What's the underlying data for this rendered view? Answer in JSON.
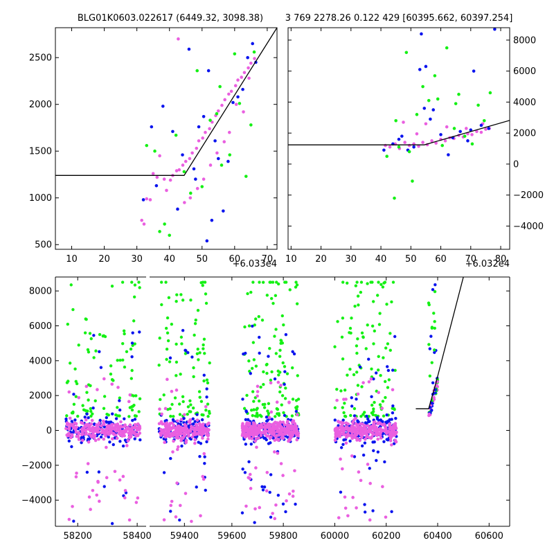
{
  "colors": {
    "blue": "#0a14ee",
    "green": "#15f015",
    "magenta": "#ea5fe0",
    "fit_line": "#000000",
    "background": "#ffffff"
  },
  "chart_data": [
    {
      "type": "scatter",
      "panel": "top-left",
      "title": "BLG01K0603.022617 (6449.32, 3098.38)",
      "xlabel": "",
      "ylabel": "",
      "x_offset_label": "+6.033e4",
      "xlim": [
        5,
        73
      ],
      "ylim": [
        450,
        2820
      ],
      "xticks": [
        10,
        20,
        30,
        40,
        50,
        60,
        70
      ],
      "yticks": [
        500,
        1000,
        1500,
        2000,
        2500
      ],
      "y_axis_side": "left",
      "series": [
        {
          "color_key": "magenta",
          "x": [
            31.5,
            32.2,
            33.0,
            34.1,
            35.0,
            36.2,
            37.0,
            38.4,
            39.1,
            40.3,
            41.0,
            42.2,
            43.0,
            44.1,
            45.0,
            46.2,
            47.0,
            48.3,
            49.0,
            50.2,
            51.0,
            52.3,
            53.1,
            54.2,
            55.0,
            56.1,
            57.0,
            58.2,
            59.0,
            60.3,
            61.0,
            62.1,
            63.0,
            64.2,
            65.0,
            66.1,
            60.5,
            62.7,
            64.4,
            58.4,
            56.8,
            54.6,
            52.6,
            50.5,
            48.6,
            46.4,
            44.6,
            42.7
          ],
          "y": [
            760,
            720,
            990,
            980,
            1260,
            1220,
            1450,
            1200,
            1080,
            1190,
            1240,
            1290,
            1300,
            1350,
            1390,
            1420,
            1480,
            1530,
            1610,
            1640,
            1700,
            1740,
            1810,
            1880,
            1930,
            1990,
            2050,
            2110,
            2140,
            2200,
            2260,
            2290,
            2340,
            2390,
            2440,
            2490,
            2000,
            1920,
            2280,
            1700,
            1600,
            1480,
            1350,
            1200,
            1100,
            1000,
            950,
            2700
          ]
        },
        {
          "color_key": "blue",
          "x": [
            32.0,
            34.5,
            36.0,
            38.0,
            41.0,
            42.5,
            44.0,
            46.0,
            47.5,
            49.0,
            50.5,
            52.0,
            53.0,
            55.0,
            56.5,
            58.0,
            59.5,
            61.0,
            62.5,
            64.0,
            65.5,
            66.5,
            48.0,
            51.5,
            54.0
          ],
          "y": [
            980,
            1760,
            1130,
            1980,
            1710,
            880,
            1460,
            2590,
            1310,
            1760,
            1870,
            2360,
            760,
            1420,
            860,
            1390,
            2020,
            2080,
            2160,
            2500,
            2650,
            2450,
            1200,
            540,
            1610
          ]
        },
        {
          "color_key": "green",
          "x": [
            33.0,
            35.5,
            38.5,
            40.0,
            42.0,
            44.5,
            46.5,
            48.5,
            50.0,
            52.5,
            54.5,
            56.0,
            58.5,
            60.0,
            61.5,
            63.5,
            65.0,
            66.0,
            37.0,
            55.5
          ],
          "y": [
            1560,
            1500,
            720,
            600,
            1670,
            1280,
            1050,
            2360,
            1120,
            1830,
            1900,
            1350,
            1460,
            2540,
            2010,
            1230,
            1780,
            2560,
            640,
            2190
          ]
        }
      ],
      "fit_line": {
        "x": [
          5,
          44.5,
          73
        ],
        "y": [
          1240,
          1240,
          2820
        ]
      }
    },
    {
      "type": "scatter",
      "panel": "top-right",
      "title": "3 769 2278.26 0.122 429 [60395.662, 60397.254]",
      "xlabel": "",
      "ylabel": "",
      "x_offset_label": "+6.032e4",
      "xlim": [
        9,
        83
      ],
      "ylim": [
        -5500,
        8800
      ],
      "xticks": [
        10,
        20,
        30,
        40,
        50,
        60,
        70,
        80
      ],
      "yticks": [
        -4000,
        -2000,
        0,
        2000,
        4000,
        6000,
        8000
      ],
      "y_axis_side": "right",
      "series": [
        {
          "color_key": "magenta",
          "x": [
            41.5,
            43.0,
            44.8,
            46.2,
            48.0,
            49.5,
            51.0,
            52.6,
            54.0,
            55.5,
            57.0,
            58.4,
            60.0,
            61.5,
            63.0,
            64.4,
            66.0,
            67.5,
            69.0,
            70.4,
            72.0,
            73.5,
            75.0,
            76.2,
            47.5,
            55.0,
            62.0,
            68.5,
            74.0,
            52.0
          ],
          "y": [
            1200,
            1100,
            1300,
            1000,
            1400,
            1200,
            1300,
            1150,
            1400,
            1250,
            1500,
            1350,
            1600,
            1500,
            1700,
            1650,
            1850,
            1750,
            1950,
            1900,
            2100,
            2050,
            2250,
            2300,
            2700,
            2600,
            2400,
            2300,
            2600,
            1950
          ]
        },
        {
          "color_key": "blue",
          "x": [
            41.0,
            44.0,
            47.0,
            49.0,
            51.0,
            53.5,
            55.0,
            57.5,
            60.0,
            62.5,
            64.0,
            66.5,
            69.0,
            71.0,
            73.5,
            76.0,
            53.0,
            54.5,
            56.5,
            70.0,
            78.0,
            46.0
          ],
          "y": [
            900,
            1300,
            1800,
            900,
            1100,
            8400,
            6300,
            3500,
            1900,
            600,
            1700,
            2100,
            1500,
            6000,
            2500,
            2300,
            6100,
            3600,
            2900,
            2200,
            8700,
            1600
          ]
        },
        {
          "color_key": "green",
          "x": [
            42.0,
            44.5,
            46.0,
            48.5,
            50.5,
            52.0,
            54.0,
            56.0,
            58.0,
            60.5,
            62.0,
            64.5,
            66.0,
            68.0,
            70.5,
            72.5,
            74.5,
            76.5,
            45.0,
            49.5,
            59.0,
            65.0
          ],
          "y": [
            500,
            -2200,
            1100,
            7200,
            -1100,
            3200,
            5000,
            4100,
            5700,
            1200,
            7500,
            2300,
            4500,
            1800,
            1300,
            3800,
            2800,
            4600,
            2800,
            800,
            4200,
            3900
          ]
        }
      ],
      "fit_line": {
        "x": [
          9,
          54.5,
          83
        ],
        "y": [
          1240,
          1240,
          2820
        ]
      }
    },
    {
      "type": "scatter",
      "panel": "bottom",
      "title": "",
      "xlabel": "",
      "ylabel": "",
      "x_offset_label": "",
      "ylim": [
        -5500,
        8800
      ],
      "yticks": [
        -4000,
        -2000,
        0,
        2000,
        4000,
        6000,
        8000
      ],
      "y_axis_side": "left",
      "broken_x_axis": true,
      "segments": [
        {
          "xlim": [
            58125,
            58430
          ],
          "xticks": [
            58200,
            58400
          ],
          "season_range": [
            58160,
            58410
          ]
        },
        {
          "xlim": [
            59250,
            59560
          ],
          "xticks": [
            59400
          ],
          "season_range": [
            59290,
            59510
          ]
        },
        {
          "xlim": [
            59560,
            60680
          ],
          "xticks": [
            59600,
            59800,
            60000,
            60200,
            60400,
            60600
          ],
          "season_ranges": [
            [
              59640,
              59860
            ],
            [
              60000,
              60240
            ],
            [
              60365,
              60400
            ]
          ]
        }
      ],
      "dense_band": {
        "color_key": "magenta",
        "y_range": [
          -600,
          600
        ]
      },
      "outlier_spread": {
        "green_y_range": [
          0,
          8500
        ],
        "blue_y_range": [
          -5400,
          6000
        ],
        "magenta_y_range": [
          -5300,
          3000
        ]
      },
      "fit_line": {
        "x": [
          60315,
          60365,
          60395,
          60500
        ],
        "y": [
          1240,
          1240,
          2820,
          8800
        ]
      }
    }
  ]
}
